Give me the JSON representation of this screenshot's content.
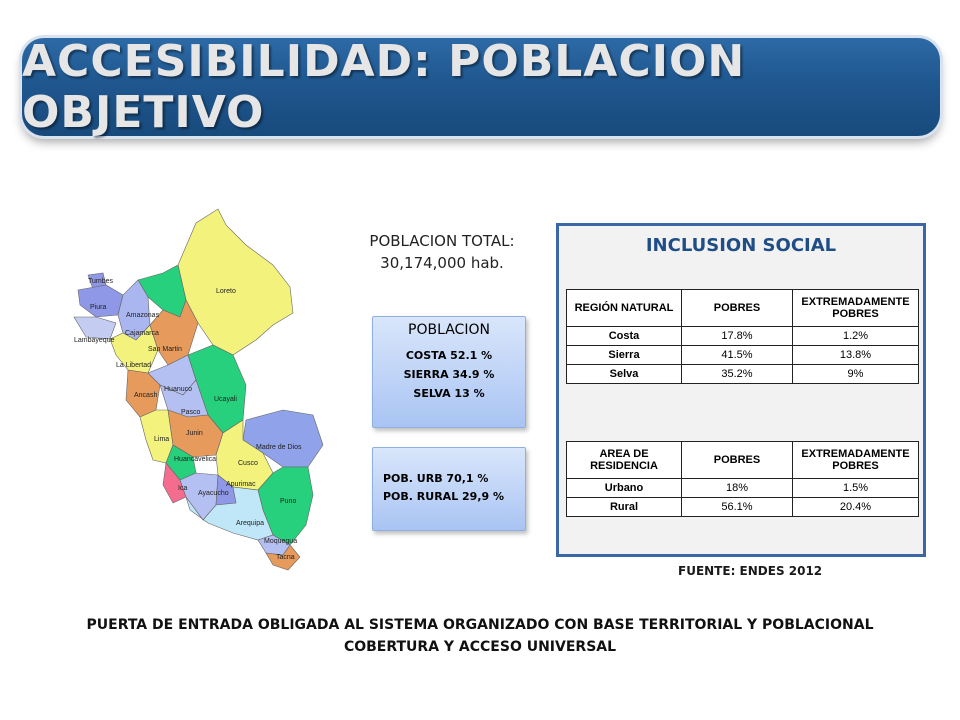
{
  "title": "ACCESIBILIDAD: POBLACION OBJETIVO",
  "map": {
    "regions": [
      "Tumbes",
      "Piura",
      "Amazonas",
      "Cajamarca",
      "Lambayeque",
      "Loreto",
      "La Libertad",
      "San Martin",
      "Ancash",
      "Huanuco",
      "Ucayali",
      "Pasco",
      "Lima",
      "Junin",
      "Madre de Dios",
      "Huancavelica",
      "Cusco",
      "Apurimac",
      "Ica",
      "Ayacucho",
      "Puno",
      "Arequipa",
      "Moquegua",
      "Tacna"
    ]
  },
  "population_total": {
    "label": "POBLACION TOTAL:",
    "value": "30,174,000 hab."
  },
  "population_box": {
    "header": "POBLACION",
    "lines": [
      "COSTA   52.1 %",
      "SIERRA 34.9 %",
      "SELVA 13 %"
    ]
  },
  "urban_box": {
    "lines": [
      "POB. URB     70,1 %",
      "POB. RURAL  29,9 %"
    ]
  },
  "inclusion": {
    "title": "INCLUSION SOCIAL",
    "table1": {
      "headers": [
        "REGIÓN NATURAL",
        "POBRES",
        "EXTREMADAMENTE POBRES"
      ],
      "rows": [
        [
          "Costa",
          "17.8%",
          "1.2%"
        ],
        [
          "Sierra",
          "41.5%",
          "13.8%"
        ],
        [
          "Selva",
          "35.2%",
          "9%"
        ]
      ]
    },
    "table2": {
      "headers": [
        "AREA DE RESIDENCIA",
        "POBRES",
        "EXTREMADAMENTE POBRES"
      ],
      "rows": [
        [
          "Urbano",
          "18%",
          "1.5%"
        ],
        [
          "Rural",
          "56.1%",
          "20.4%"
        ]
      ]
    }
  },
  "source": "FUENTE: ENDES 2012",
  "footer": {
    "line1": "PUERTA DE ENTRADA OBLIGADA AL SISTEMA ORGANIZADO  CON BASE TERRITORIAL Y POBLACIONAL",
    "line2": "COBERTURA  Y ACCESO UNIVERSAL"
  }
}
